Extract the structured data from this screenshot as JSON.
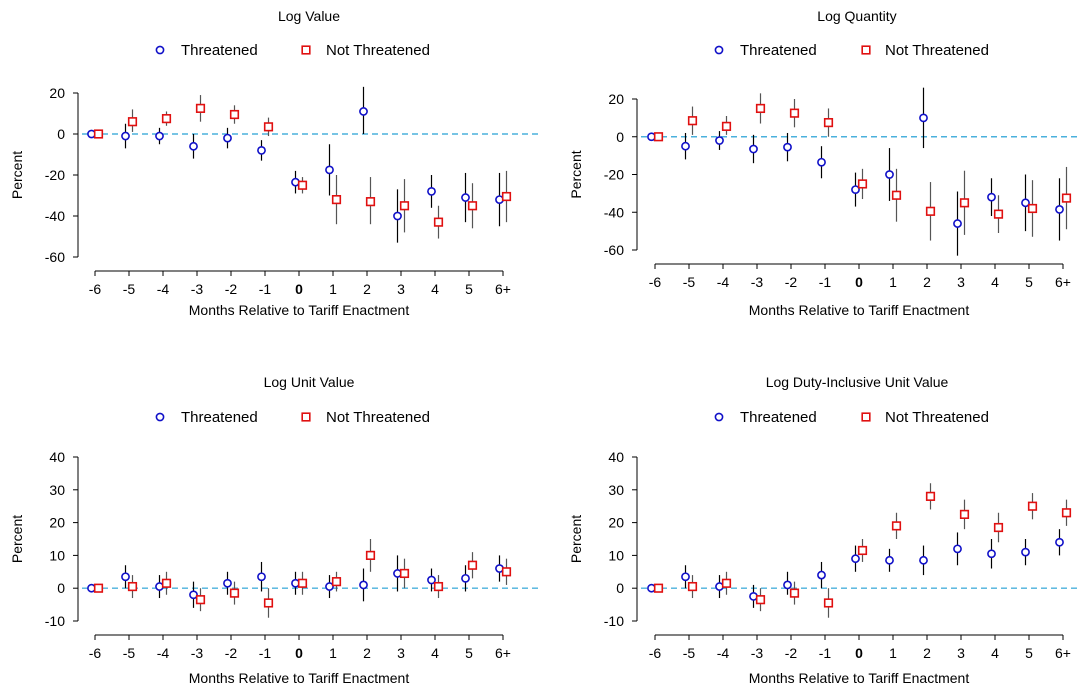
{
  "legend": {
    "threatened": "Threatened",
    "not_threatened": "Not Threatened"
  },
  "colors": {
    "threatened": "#1010c8",
    "not_threatened": "#e01010",
    "zero_line": "#4ab0dc",
    "ci_threatened": "#000000",
    "ci_not_threatened": "#555555"
  },
  "chart_data": [
    {
      "type": "scatter",
      "title": "Log Value",
      "xlabel": "Months Relative to Tariff Enactment",
      "ylabel": "Percent",
      "categories": [
        "-6",
        "-5",
        "-4",
        "-3",
        "-2",
        "-1",
        "0",
        "1",
        "2",
        "3",
        "4",
        "5",
        "6+"
      ],
      "yticks": [
        20,
        0,
        -20,
        -40,
        -60
      ],
      "ylim": [
        -65,
        28
      ],
      "series": [
        {
          "name": "Threatened",
          "values": [
            0,
            -1,
            -1,
            -6,
            -2,
            -8,
            -23.5,
            -17.5,
            11,
            -40,
            -28,
            -31,
            -32
          ],
          "ci_low": [
            0,
            -7,
            -5,
            -12,
            -7,
            -13,
            -29,
            -30,
            0,
            -53,
            -36,
            -43,
            -45
          ],
          "ci_high": [
            0,
            5,
            3,
            0,
            3,
            -3,
            -18,
            -5,
            23,
            -27,
            -20,
            -19,
            -19
          ]
        },
        {
          "name": "Not Threatened",
          "values": [
            0,
            6,
            7.5,
            12.5,
            9.5,
            3.5,
            -25,
            -32,
            -33,
            -35,
            -43,
            -35,
            -30.5
          ],
          "ci_low": [
            0,
            1,
            4,
            6,
            5,
            -1,
            -29,
            -44,
            -44,
            -48,
            -51,
            -46,
            -43
          ],
          "ci_high": [
            0,
            12,
            11,
            19,
            14,
            8,
            -21,
            -20,
            -21,
            -22,
            -35,
            -24,
            -18
          ]
        }
      ]
    },
    {
      "type": "scatter",
      "title": "Log Quantity",
      "xlabel": "Months Relative to Tariff Enactment",
      "ylabel": "Percent",
      "categories": [
        "-6",
        "-5",
        "-4",
        "-3",
        "-2",
        "-1",
        "0",
        "1",
        "2",
        "3",
        "4",
        "5",
        "6+"
      ],
      "yticks": [
        20,
        0,
        -20,
        -40,
        -60
      ],
      "ylim": [
        -68,
        28
      ],
      "series": [
        {
          "name": "Threatened",
          "values": [
            0,
            -5,
            -2,
            -6.5,
            -5.5,
            -13.5,
            -28,
            -20,
            10,
            -46,
            -32,
            -35,
            -38.5
          ],
          "ci_low": [
            0,
            -12,
            -7,
            -14,
            -13,
            -22,
            -37,
            -34,
            -6,
            -63,
            -42,
            -50,
            -55
          ],
          "ci_high": [
            0,
            2,
            3,
            1,
            2,
            -5,
            -19,
            -6,
            26,
            -29,
            -22,
            -20,
            -22
          ]
        },
        {
          "name": "Not Threatened",
          "values": [
            0,
            8.5,
            5.5,
            15,
            12.5,
            7.5,
            -25,
            -31,
            -39.5,
            -35,
            -41,
            -38,
            -32.5
          ],
          "ci_low": [
            0,
            1,
            1,
            7,
            5,
            0,
            -33,
            -45,
            -55,
            -52,
            -51,
            -53,
            -49
          ],
          "ci_high": [
            0,
            16,
            11,
            23,
            20,
            15,
            -17,
            -17,
            -24,
            -18,
            -31,
            -23,
            -16
          ]
        }
      ]
    },
    {
      "type": "scatter",
      "title": "Log Unit Value",
      "xlabel": "Months Relative to Tariff Enactment",
      "ylabel": "Percent",
      "categories": [
        "-6",
        "-5",
        "-4",
        "-3",
        "-2",
        "-1",
        "0",
        "1",
        "2",
        "3",
        "4",
        "5",
        "6+"
      ],
      "yticks": [
        40,
        30,
        20,
        10,
        0,
        -10
      ],
      "ylim": [
        -13,
        42
      ],
      "series": [
        {
          "name": "Threatened",
          "values": [
            0,
            3.5,
            0.5,
            -2,
            1.5,
            3.5,
            1.5,
            0.5,
            1,
            4.5,
            2.5,
            3,
            6
          ],
          "ci_low": [
            0,
            0,
            -3,
            -6,
            -2,
            -1,
            -2,
            -3,
            -4,
            -1,
            -1,
            -1,
            2
          ],
          "ci_high": [
            0,
            7,
            4,
            2,
            5,
            8,
            5,
            4,
            6,
            10,
            6,
            7,
            10
          ]
        },
        {
          "name": "Not Threatened",
          "values": [
            0,
            0.5,
            1.5,
            -3.5,
            -1.5,
            -4.5,
            1.5,
            2,
            10,
            4.5,
            0.5,
            7,
            5
          ],
          "ci_low": [
            0,
            -3,
            -2,
            -7,
            -5,
            -9,
            -2,
            -1,
            5,
            0,
            -3,
            3,
            1
          ],
          "ci_high": [
            0,
            4,
            5,
            0,
            2,
            0,
            5,
            5,
            15,
            9,
            4,
            11,
            9
          ]
        }
      ]
    },
    {
      "type": "scatter",
      "title": "Log Duty-Inclusive Unit Value",
      "xlabel": "Months Relative to Tariff Enactment",
      "ylabel": "Percent",
      "categories": [
        "-6",
        "-5",
        "-4",
        "-3",
        "-2",
        "-1",
        "0",
        "1",
        "2",
        "3",
        "4",
        "5",
        "6+"
      ],
      "yticks": [
        40,
        30,
        20,
        10,
        0,
        -10
      ],
      "ylim": [
        -13,
        42
      ],
      "series": [
        {
          "name": "Threatened",
          "values": [
            0,
            3.5,
            0.5,
            -2.5,
            1,
            4,
            9,
            8.5,
            8.5,
            12,
            10.5,
            11,
            14
          ],
          "ci_low": [
            0,
            0,
            -3,
            -6,
            -2,
            0,
            5,
            5,
            4,
            7,
            6,
            7,
            10
          ],
          "ci_high": [
            0,
            7,
            4,
            1,
            5,
            8,
            13,
            12,
            13,
            17,
            15,
            15,
            18
          ]
        },
        {
          "name": "Not Threatened",
          "values": [
            0,
            0.5,
            1.5,
            -3.5,
            -1.5,
            -4.5,
            11.5,
            19,
            28,
            22.5,
            18.5,
            25,
            23
          ],
          "ci_low": [
            0,
            -3,
            -2,
            -7,
            -5,
            -9,
            8,
            15,
            24,
            18,
            14,
            21,
            19
          ],
          "ci_high": [
            0,
            4,
            5,
            0,
            2,
            0,
            15,
            23,
            32,
            27,
            23,
            29,
            27
          ]
        }
      ]
    }
  ]
}
